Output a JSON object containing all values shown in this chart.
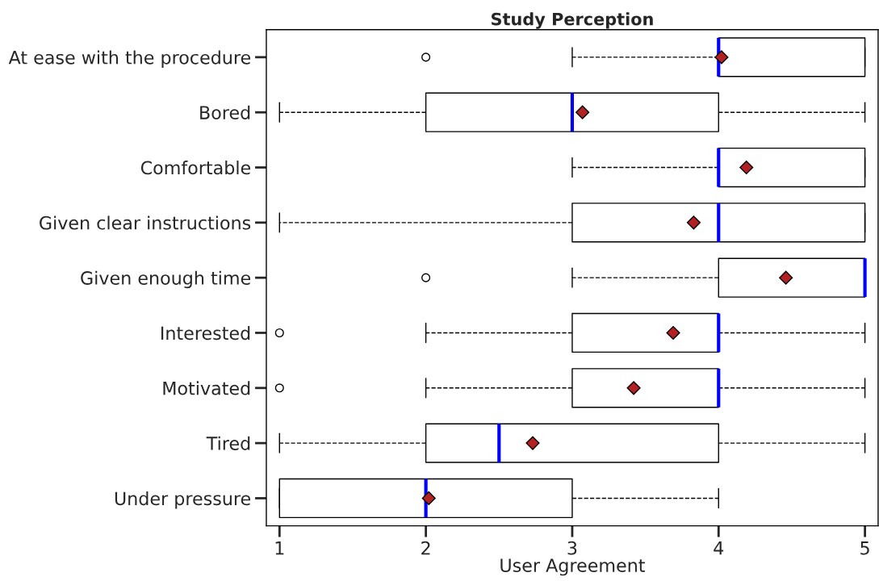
{
  "chart_data": {
    "type": "box",
    "title": "Study Perception",
    "xlabel": "User Agreement",
    "orientation": "horizontal",
    "marker": "diamond",
    "categories": [
      "At ease with the procedure",
      "Bored",
      "Comfortable",
      "Given clear instructions",
      "Given enough time",
      "Interested",
      "Motivated",
      "Tired",
      "Under pressure"
    ],
    "boxes": [
      {
        "low": 3,
        "q1": 4,
        "median": 4,
        "q3": 5,
        "high": 5,
        "mean": 4.02,
        "outliers": [
          2
        ]
      },
      {
        "low": 1,
        "q1": 2,
        "median": 3,
        "q3": 4,
        "high": 5,
        "mean": 3.07
      },
      {
        "low": 3,
        "q1": 4,
        "median": 4,
        "q3": 5,
        "high": 5,
        "mean": 4.19
      },
      {
        "low": 1,
        "q1": 3,
        "median": 4,
        "q3": 5,
        "high": 5,
        "mean": 3.83
      },
      {
        "low": 3,
        "q1": 4,
        "median": 5,
        "q3": 5,
        "high": 5,
        "mean": 4.46,
        "outliers": [
          2
        ]
      },
      {
        "low": 2,
        "q1": 3,
        "median": 4,
        "q3": 4,
        "high": 5,
        "mean": 3.69,
        "outliers": [
          1
        ]
      },
      {
        "low": 2,
        "q1": 3,
        "median": 4,
        "q3": 4,
        "high": 5,
        "mean": 3.42,
        "outliers": [
          1
        ]
      },
      {
        "low": 1,
        "q1": 2,
        "median": 2.5,
        "q3": 4,
        "high": 5,
        "mean": 2.73
      },
      {
        "low": 1,
        "q1": 1,
        "median": 2,
        "q3": 3,
        "high": 4,
        "mean": 2.02
      }
    ],
    "xlim": [
      0.91,
      5.09
    ],
    "xticks": [
      1,
      2,
      3,
      4,
      5
    ],
    "grid": false
  }
}
